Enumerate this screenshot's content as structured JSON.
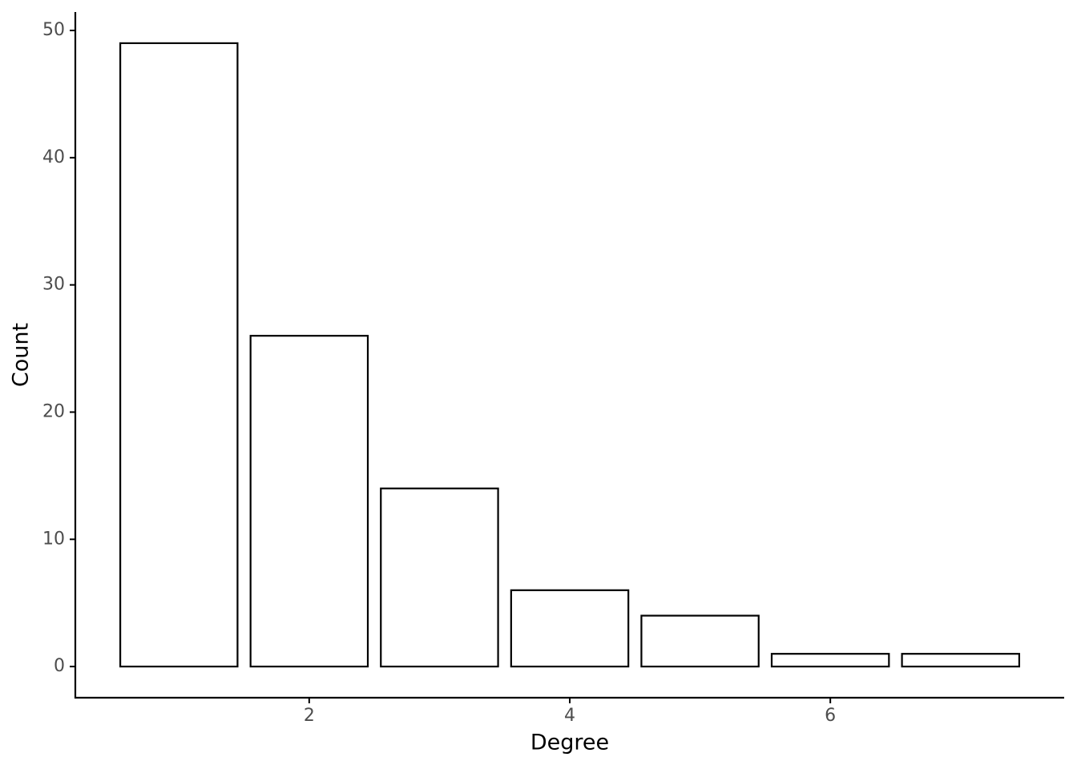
{
  "chart_data": {
    "type": "bar",
    "x_label": "Degree",
    "y_label": "Count",
    "x": [
      1,
      2,
      3,
      4,
      5,
      6,
      7
    ],
    "values": [
      49,
      26,
      14,
      6,
      4,
      1,
      1
    ],
    "color": "#ffffff",
    "edge_color": "#000000",
    "xlim": [
      0.205,
      7.795
    ],
    "xticks": [
      2,
      4,
      6
    ],
    "ylim": [
      -2.45,
      51.45
    ],
    "yticks": [
      0,
      10,
      20,
      30,
      40,
      50
    ],
    "grid": false
  }
}
